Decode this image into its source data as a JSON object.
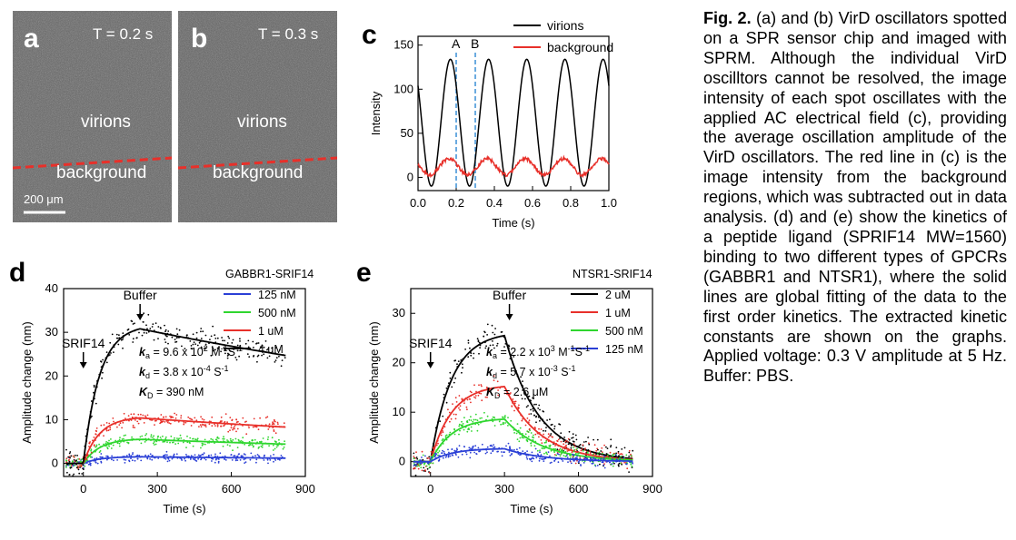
{
  "panel_a": {
    "letter": "a",
    "time": "T = 0.2 s",
    "upper": "virions",
    "lower": "background",
    "scale": "200 μm"
  },
  "panel_b": {
    "letter": "b",
    "time": "T = 0.3 s",
    "upper": "virions",
    "lower": "background"
  },
  "caption": {
    "label": "Fig. 2.",
    "text": "(a) and (b) VirD oscillators spotted on a SPR sensor chip and imaged with SPRM. Although the individual VirD oscilltors cannot be resolved, the image intensity of each spot oscillates with the applied AC electrical field (c), providing the average oscillation amplitude of the VirD oscillators. The red line in (c) is the image intensity from the background regions, which was subtracted out in data analysis. (d) and (e) show the kinetics of a peptide ligand (SPRIF14 MW=1560) binding to two different types of GPCRs (GABBR1 and NTSR1), where the solid lines are global fitting of the data to the first order kinetics. The extracted kinetic constants are shown on the graphs. Applied voltage: 0.3 V amplitude at 5 Hz. Buffer: PBS."
  },
  "chart_data": [
    {
      "id": "c",
      "type": "line",
      "panel_letter": "c",
      "xlabel": "Time (s)",
      "ylabel": "Intensity",
      "xlim": [
        0,
        1.0
      ],
      "ylim": [
        -15,
        160
      ],
      "xticks": [
        "0.0",
        "0.2",
        "0.4",
        "0.6",
        "0.8",
        "1.0"
      ],
      "yticks": [
        "0",
        "50",
        "100",
        "150"
      ],
      "markers": [
        {
          "label": "A",
          "x": 0.2
        },
        {
          "label": "B",
          "x": 0.3
        }
      ],
      "series": [
        {
          "name": "virions",
          "color": "#000000",
          "amplitude": 72,
          "offset": 62,
          "frequency": 5,
          "phase": 0.95
        },
        {
          "name": "background",
          "color": "#e8302a",
          "amplitude": 9,
          "offset": 12,
          "frequency": 5,
          "phase": 1.2
        }
      ]
    },
    {
      "id": "d",
      "type": "scatter",
      "panel_letter": "d",
      "legend_title": "GABBR1-SRIF14",
      "xlabel": "Time (s)",
      "ylabel": "Amplitude change (nm)",
      "xlim": [
        -80,
        900
      ],
      "ylim": [
        -3,
        40
      ],
      "xticks": [
        "0",
        "300",
        "600",
        "900"
      ],
      "yticks": [
        "0",
        "10",
        "20",
        "30",
        "40"
      ],
      "annotations": [
        {
          "text": "SRIF14",
          "x": 0
        },
        {
          "text": "Buffer",
          "x": 230
        }
      ],
      "constants": {
        "ka_label": "k",
        "ka_sub": "a",
        "ka_value": " = 9.6 x 10",
        "ka_exp": "2",
        "ka_unit": " M",
        "ka_unit_exp": "-1",
        "ka_unit2": "S",
        "ka_unit2_exp": "-1",
        "kd_label": "k",
        "kd_sub": "d",
        "kd_value": " = 3.8 x 10",
        "kd_exp": "-4",
        "kd_unit": " S",
        "kd_unit_exp": "-1",
        "KD_label": "K",
        "KD_sub": "D",
        "KD_value": " = 390 nM"
      },
      "t_on": 0,
      "t_off": 230,
      "series": [
        {
          "name": "125 nM",
          "color": "#2a3fd6",
          "plateau_at_off": 1.5,
          "end": 1.2
        },
        {
          "name": "500 nM",
          "color": "#2fd62f",
          "plateau_at_off": 5.5,
          "end": 4.4
        },
        {
          "name": "1 uM",
          "color": "#e8302a",
          "plateau_at_off": 10.4,
          "end": 8.3
        },
        {
          "name": "4 uM",
          "color": "#000000",
          "plateau_at_off": 30.8,
          "end": 24.7
        }
      ]
    },
    {
      "id": "e",
      "type": "scatter",
      "panel_letter": "e",
      "legend_title": "NTSR1-SRIF14",
      "xlabel": "Time (s)",
      "ylabel": "Amplitude change (nm)",
      "xlim": [
        -80,
        900
      ],
      "ylim": [
        -3,
        35
      ],
      "xticks": [
        "0",
        "300",
        "600",
        "900"
      ],
      "yticks": [
        "0",
        "10",
        "20",
        "30"
      ],
      "annotations": [
        {
          "text": "SRIF14",
          "x": 0
        },
        {
          "text": "Buffer",
          "x": 320
        }
      ],
      "constants": {
        "ka_label": "k",
        "ka_sub": "a",
        "ka_value": " = 2.2 x 10",
        "ka_exp": "3",
        "ka_unit": " M",
        "ka_unit_exp": "-1",
        "ka_unit2": "S",
        "ka_unit2_exp": "-1",
        "kd_label": "k",
        "kd_sub": "d",
        "kd_value": " = 5.7 x 10",
        "kd_exp": "-3",
        "kd_unit": " S",
        "kd_unit_exp": "-1",
        "KD_label": "K",
        "KD_sub": "D",
        "KD_value": " = 2.6 μM"
      },
      "t_on": 0,
      "t_off": 300,
      "series": [
        {
          "name": "2 uM",
          "color": "#000000",
          "plateau_at_off": 25.5,
          "end": 0.6
        },
        {
          "name": "1 uM",
          "color": "#e8302a",
          "plateau_at_off": 15.2,
          "end": 0.4
        },
        {
          "name": "500 nM",
          "color": "#2fd62f",
          "plateau_at_off": 8.6,
          "end": 0.3
        },
        {
          "name": "125 nM",
          "color": "#2a3fd6",
          "plateau_at_off": 2.6,
          "end": 0.1
        }
      ]
    }
  ]
}
